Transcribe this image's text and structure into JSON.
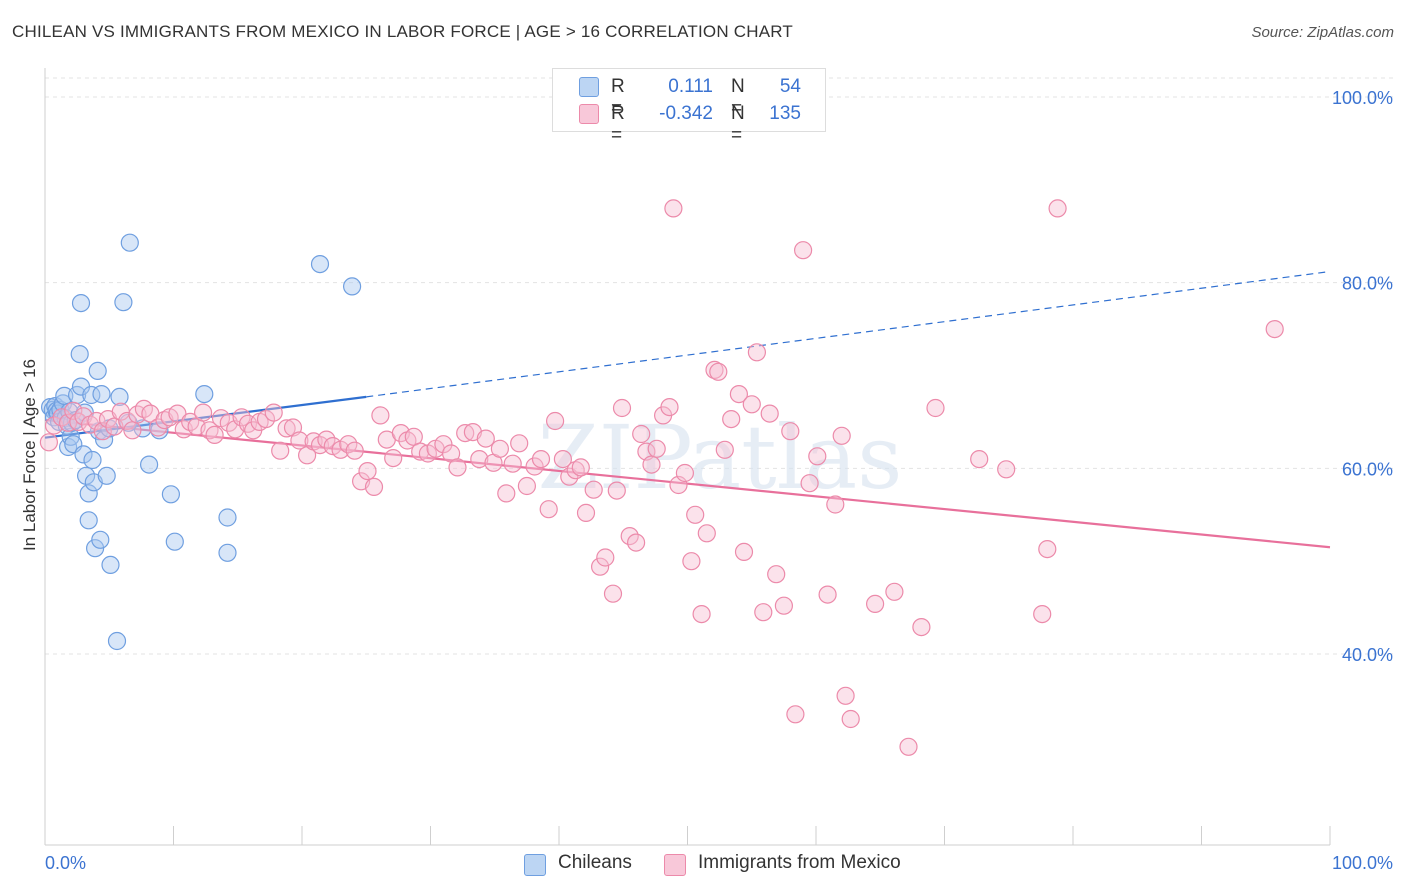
{
  "title": "CHILEAN VS IMMIGRANTS FROM MEXICO IN LABOR FORCE | AGE > 16 CORRELATION CHART",
  "source": "Source: ZipAtlas.com",
  "watermark": "ZIPatlas",
  "colors": {
    "blue_fill": "#a9c8f0",
    "blue_stroke": "#6f9fe0",
    "blue_line": "#2f6fd0",
    "pink_fill": "#f6bfd2",
    "pink_stroke": "#ec8aaa",
    "pink_line": "#e8709b",
    "tick_label": "#3b73d1",
    "grid": "#e3e3e3"
  },
  "legend_top": {
    "rows": [
      {
        "r_label": "R =",
        "r_value": "0.111",
        "n_label": "N =",
        "n_value": "54",
        "series": "blue"
      },
      {
        "r_label": "R =",
        "r_value": "-0.342",
        "n_label": "N =",
        "n_value": "135",
        "series": "pink"
      }
    ]
  },
  "legend_bottom": {
    "items": [
      {
        "label": "Chileans",
        "series": "blue"
      },
      {
        "label": "Immigrants from Mexico",
        "series": "pink"
      }
    ]
  },
  "chart_data": {
    "type": "scatter",
    "title": "CHILEAN VS IMMIGRANTS FROM MEXICO IN LABOR FORCE | AGE > 16 CORRELATION CHART",
    "xlabel": "",
    "ylabel": "In Labor Force | Age > 16",
    "xlim": [
      0,
      100
    ],
    "ylim": [
      20,
      100
    ],
    "x_tick_labels": [
      "0.0%",
      "100.0%"
    ],
    "y_ticks": [
      {
        "value": 100,
        "label": "100.0%"
      },
      {
        "value": 80,
        "label": "80.0%"
      },
      {
        "value": 60,
        "label": "60.0%"
      },
      {
        "value": 40,
        "label": "40.0%"
      }
    ],
    "grid": true,
    "legend_position": "top-center",
    "series": [
      {
        "name": "Chileans",
        "color": "blue",
        "stats": {
          "R": 0.111,
          "N": 54
        },
        "trend": {
          "x0": 0,
          "y0": 63.3,
          "x1": 25,
          "y1": 67.7,
          "dashed_to": {
            "x": 100,
            "y": 81.2
          }
        },
        "points": [
          [
            0.4,
            66.6
          ],
          [
            0.6,
            66.3
          ],
          [
            0.7,
            65.5
          ],
          [
            0.8,
            66.7
          ],
          [
            0.9,
            66.2
          ],
          [
            1.0,
            65.9
          ],
          [
            1.1,
            65.0
          ],
          [
            1.2,
            66.3
          ],
          [
            1.4,
            67.0
          ],
          [
            1.5,
            67.8
          ],
          [
            1.6,
            65.4
          ],
          [
            1.7,
            64.6
          ],
          [
            1.8,
            62.3
          ],
          [
            1.9,
            66.1
          ],
          [
            2.0,
            63.4
          ],
          [
            2.1,
            64.9
          ],
          [
            2.2,
            62.6
          ],
          [
            2.4,
            65.2
          ],
          [
            2.5,
            67.9
          ],
          [
            2.7,
            72.3
          ],
          [
            2.8,
            68.8
          ],
          [
            2.8,
            77.8
          ],
          [
            3.0,
            61.5
          ],
          [
            3.1,
            66.0
          ],
          [
            3.2,
            59.2
          ],
          [
            3.4,
            54.4
          ],
          [
            3.4,
            57.3
          ],
          [
            3.6,
            67.9
          ],
          [
            3.7,
            60.9
          ],
          [
            3.8,
            58.5
          ],
          [
            3.9,
            51.4
          ],
          [
            4.1,
            70.5
          ],
          [
            4.2,
            64.0
          ],
          [
            4.3,
            52.3
          ],
          [
            4.4,
            68.0
          ],
          [
            4.6,
            63.1
          ],
          [
            4.8,
            59.2
          ],
          [
            5.0,
            64.3
          ],
          [
            5.1,
            49.6
          ],
          [
            5.6,
            41.4
          ],
          [
            5.8,
            67.7
          ],
          [
            6.1,
            77.9
          ],
          [
            6.6,
            84.3
          ],
          [
            7.6,
            64.3
          ],
          [
            8.1,
            60.4
          ],
          [
            8.9,
            64.1
          ],
          [
            9.8,
            57.2
          ],
          [
            10.1,
            52.1
          ],
          [
            12.4,
            68.0
          ],
          [
            14.2,
            54.7
          ],
          [
            14.2,
            50.9
          ],
          [
            21.4,
            82.0
          ],
          [
            23.9,
            79.6
          ],
          [
            6.5,
            64.9
          ]
        ]
      },
      {
        "name": "Immigrants from Mexico",
        "color": "pink",
        "stats": {
          "R": -0.342,
          "N": 135
        },
        "trend": {
          "x0": 0,
          "y0": 65.2,
          "x1": 100,
          "y1": 51.5
        },
        "points": [
          [
            0.3,
            62.8
          ],
          [
            0.7,
            64.6
          ],
          [
            1.3,
            65.5
          ],
          [
            1.8,
            64.9
          ],
          [
            2.2,
            66.2
          ],
          [
            2.6,
            65.0
          ],
          [
            3.0,
            65.6
          ],
          [
            3.5,
            64.7
          ],
          [
            4.0,
            65.1
          ],
          [
            4.5,
            64.0
          ],
          [
            4.9,
            65.3
          ],
          [
            5.4,
            64.5
          ],
          [
            5.9,
            66.1
          ],
          [
            6.4,
            65.1
          ],
          [
            6.8,
            64.1
          ],
          [
            7.2,
            65.8
          ],
          [
            7.7,
            66.4
          ],
          [
            8.2,
            65.9
          ],
          [
            8.8,
            64.4
          ],
          [
            9.3,
            65.2
          ],
          [
            9.7,
            65.5
          ],
          [
            10.3,
            65.9
          ],
          [
            10.8,
            64.2
          ],
          [
            11.3,
            65.0
          ],
          [
            11.8,
            64.5
          ],
          [
            12.3,
            66.0
          ],
          [
            12.8,
            64.1
          ],
          [
            13.2,
            63.6
          ],
          [
            13.7,
            65.4
          ],
          [
            14.3,
            64.9
          ],
          [
            14.8,
            64.2
          ],
          [
            15.3,
            65.5
          ],
          [
            15.8,
            64.8
          ],
          [
            16.2,
            64.1
          ],
          [
            16.7,
            65.0
          ],
          [
            17.2,
            65.3
          ],
          [
            17.8,
            66.0
          ],
          [
            18.3,
            61.9
          ],
          [
            18.8,
            64.3
          ],
          [
            19.3,
            64.4
          ],
          [
            19.8,
            63.0
          ],
          [
            20.4,
            61.4
          ],
          [
            20.9,
            62.9
          ],
          [
            21.4,
            62.5
          ],
          [
            21.9,
            63.1
          ],
          [
            22.4,
            62.4
          ],
          [
            23.0,
            62.0
          ],
          [
            23.6,
            62.6
          ],
          [
            24.1,
            61.9
          ],
          [
            24.6,
            58.6
          ],
          [
            25.1,
            59.7
          ],
          [
            25.6,
            58.0
          ],
          [
            26.1,
            65.7
          ],
          [
            26.6,
            63.1
          ],
          [
            27.1,
            61.1
          ],
          [
            27.7,
            63.8
          ],
          [
            28.2,
            63.0
          ],
          [
            28.7,
            63.4
          ],
          [
            29.2,
            61.8
          ],
          [
            29.8,
            61.6
          ],
          [
            30.4,
            62.1
          ],
          [
            31.0,
            62.6
          ],
          [
            31.6,
            61.6
          ],
          [
            32.1,
            60.1
          ],
          [
            32.7,
            63.8
          ],
          [
            33.3,
            63.9
          ],
          [
            33.8,
            61.0
          ],
          [
            34.3,
            63.2
          ],
          [
            34.9,
            60.6
          ],
          [
            35.4,
            62.1
          ],
          [
            35.9,
            57.3
          ],
          [
            36.4,
            60.5
          ],
          [
            36.9,
            62.7
          ],
          [
            37.5,
            58.1
          ],
          [
            38.1,
            60.2
          ],
          [
            38.6,
            61.0
          ],
          [
            39.2,
            55.6
          ],
          [
            39.7,
            65.1
          ],
          [
            40.3,
            61.0
          ],
          [
            40.8,
            59.1
          ],
          [
            41.3,
            59.8
          ],
          [
            41.7,
            60.1
          ],
          [
            42.1,
            55.2
          ],
          [
            42.7,
            57.7
          ],
          [
            43.2,
            49.4
          ],
          [
            43.6,
            50.4
          ],
          [
            44.2,
            46.5
          ],
          [
            44.5,
            57.6
          ],
          [
            44.9,
            66.5
          ],
          [
            45.5,
            52.7
          ],
          [
            46.0,
            52.0
          ],
          [
            46.4,
            63.7
          ],
          [
            46.8,
            61.8
          ],
          [
            47.2,
            60.4
          ],
          [
            47.6,
            62.1
          ],
          [
            48.1,
            65.7
          ],
          [
            48.6,
            66.6
          ],
          [
            48.9,
            88.0
          ],
          [
            49.3,
            58.2
          ],
          [
            49.8,
            59.5
          ],
          [
            50.3,
            50.0
          ],
          [
            50.6,
            55.0
          ],
          [
            51.1,
            44.3
          ],
          [
            51.5,
            53.0
          ],
          [
            52.1,
            70.6
          ],
          [
            52.4,
            70.4
          ],
          [
            52.9,
            62.0
          ],
          [
            53.4,
            65.3
          ],
          [
            54.0,
            68.0
          ],
          [
            54.4,
            51.0
          ],
          [
            55.0,
            66.9
          ],
          [
            55.4,
            72.5
          ],
          [
            55.9,
            44.5
          ],
          [
            56.4,
            65.9
          ],
          [
            56.9,
            48.6
          ],
          [
            57.5,
            45.2
          ],
          [
            58.0,
            64.0
          ],
          [
            58.4,
            33.5
          ],
          [
            59.0,
            83.5
          ],
          [
            59.5,
            58.4
          ],
          [
            60.1,
            61.3
          ],
          [
            60.9,
            46.4
          ],
          [
            61.5,
            56.1
          ],
          [
            62.0,
            63.5
          ],
          [
            62.3,
            35.5
          ],
          [
            62.7,
            33.0
          ],
          [
            64.6,
            45.4
          ],
          [
            66.1,
            46.7
          ],
          [
            67.2,
            30.0
          ],
          [
            68.2,
            42.9
          ],
          [
            69.3,
            66.5
          ],
          [
            72.7,
            61.0
          ],
          [
            74.8,
            59.9
          ],
          [
            77.6,
            44.3
          ],
          [
            78.0,
            51.3
          ],
          [
            78.8,
            88.0
          ],
          [
            95.7,
            75.0
          ]
        ]
      }
    ]
  }
}
